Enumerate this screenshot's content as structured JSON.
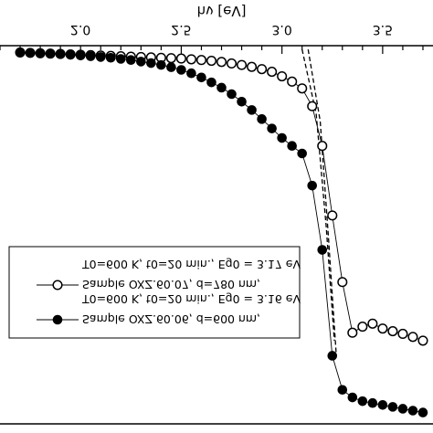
{
  "chart_data": {
    "type": "scatter",
    "xlabel": "hν [eV]",
    "x_ticks": [
      "2.0",
      "2.5",
      "3.0",
      "3.5"
    ],
    "xlim": [
      1.6,
      3.75
    ],
    "y_plot_range": [
      0,
      1
    ],
    "series": [
      {
        "name": "Sample OXZ.60.07, d=780 nm,",
        "condition": "T0=600 K, t0=20 min., Eg0 = 3.17 eV",
        "marker": "open-circle",
        "x": [
          1.7,
          1.75,
          1.8,
          1.85,
          1.9,
          1.95,
          2.0,
          2.05,
          2.1,
          2.15,
          2.2,
          2.25,
          2.3,
          2.35,
          2.4,
          2.45,
          2.5,
          2.55,
          2.6,
          2.65,
          2.7,
          2.75,
          2.8,
          2.85,
          2.9,
          2.95,
          3.0,
          3.05,
          3.1,
          3.15,
          3.2,
          3.25,
          3.3,
          3.35,
          3.4,
          3.45,
          3.5,
          3.55,
          3.6,
          3.65,
          3.7
        ],
        "y": [
          0.982,
          0.981,
          0.98,
          0.979,
          0.978,
          0.977,
          0.976,
          0.975,
          0.974,
          0.973,
          0.972,
          0.971,
          0.97,
          0.969,
          0.968,
          0.967,
          0.966,
          0.964,
          0.962,
          0.96,
          0.957,
          0.953,
          0.949,
          0.944,
          0.938,
          0.931,
          0.919,
          0.905,
          0.887,
          0.84,
          0.735,
          0.551,
          0.375,
          0.241,
          0.257,
          0.265,
          0.252,
          0.245,
          0.238,
          0.23,
          0.22
        ]
      },
      {
        "name": "Sample OXZ.60.06, d=600 nm,",
        "condition": "T0=600 K, t0=20 min., Eg0 = 3.16 eV",
        "marker": "filled-circle",
        "x": [
          1.7,
          1.75,
          1.8,
          1.85,
          1.9,
          1.95,
          2.0,
          2.05,
          2.1,
          2.15,
          2.2,
          2.25,
          2.3,
          2.35,
          2.4,
          2.45,
          2.5,
          2.55,
          2.6,
          2.65,
          2.7,
          2.75,
          2.8,
          2.85,
          2.9,
          2.95,
          3.0,
          3.05,
          3.1,
          3.15,
          3.2,
          3.25,
          3.3,
          3.35,
          3.4,
          3.45,
          3.5,
          3.55,
          3.6,
          3.65,
          3.7
        ],
        "y": [
          0.982,
          0.981,
          0.98,
          0.979,
          0.978,
          0.976,
          0.974,
          0.972,
          0.97,
          0.968,
          0.965,
          0.962,
          0.958,
          0.954,
          0.949,
          0.943,
          0.936,
          0.927,
          0.916,
          0.903,
          0.889,
          0.872,
          0.852,
          0.83,
          0.806,
          0.781,
          0.756,
          0.735,
          0.715,
          0.63,
          0.46,
          0.18,
          0.09,
          0.07,
          0.06,
          0.055,
          0.05,
          0.045,
          0.04,
          0.035,
          0.03
        ]
      }
    ],
    "fit_lines_dashed": 2,
    "legend_position": "center-left"
  }
}
